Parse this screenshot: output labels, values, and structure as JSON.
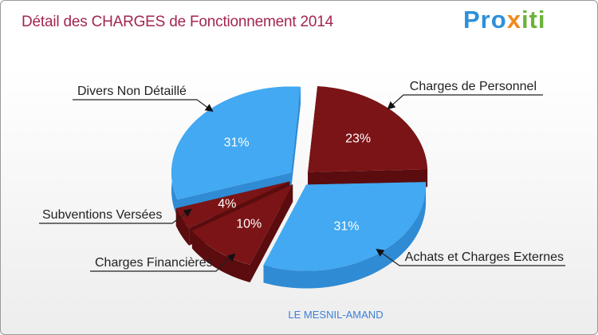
{
  "header": {
    "title": "Détail des CHARGES de Fonctionnement 2014"
  },
  "logo": {
    "text": "Proxiti",
    "colors": [
      "#2f8fd8",
      "#f08a1c",
      "#6bb33a"
    ]
  },
  "footer": {
    "location": "LE MESNIL-AMAND"
  },
  "chart_data": {
    "type": "pie",
    "title": "Détail des CHARGES de Fonctionnement 2014",
    "slices": [
      {
        "label": "Charges de Personnel",
        "value": 23,
        "pct_label": "23%",
        "color": "#7b1416",
        "side": "#5a0c0e"
      },
      {
        "label": "Achats et Charges Externes",
        "value": 31,
        "pct_label": "31%",
        "color": "#42a9f2",
        "side": "#2f8bd4"
      },
      {
        "label": "Charges Financières",
        "value": 10,
        "pct_label": "10%",
        "color": "#7b1416",
        "side": "#5a0c0e"
      },
      {
        "label": "Subventions Versées",
        "value": 4,
        "pct_label": "4%",
        "color": "#7b1416",
        "side": "#5a0c0e"
      },
      {
        "label": "Divers Non Détaillé",
        "value": 31,
        "pct_label": "31%",
        "color": "#42a9f2",
        "side": "#2f8bd4"
      }
    ],
    "legend": "callout labels around pie",
    "style": "3d exploded pie"
  }
}
